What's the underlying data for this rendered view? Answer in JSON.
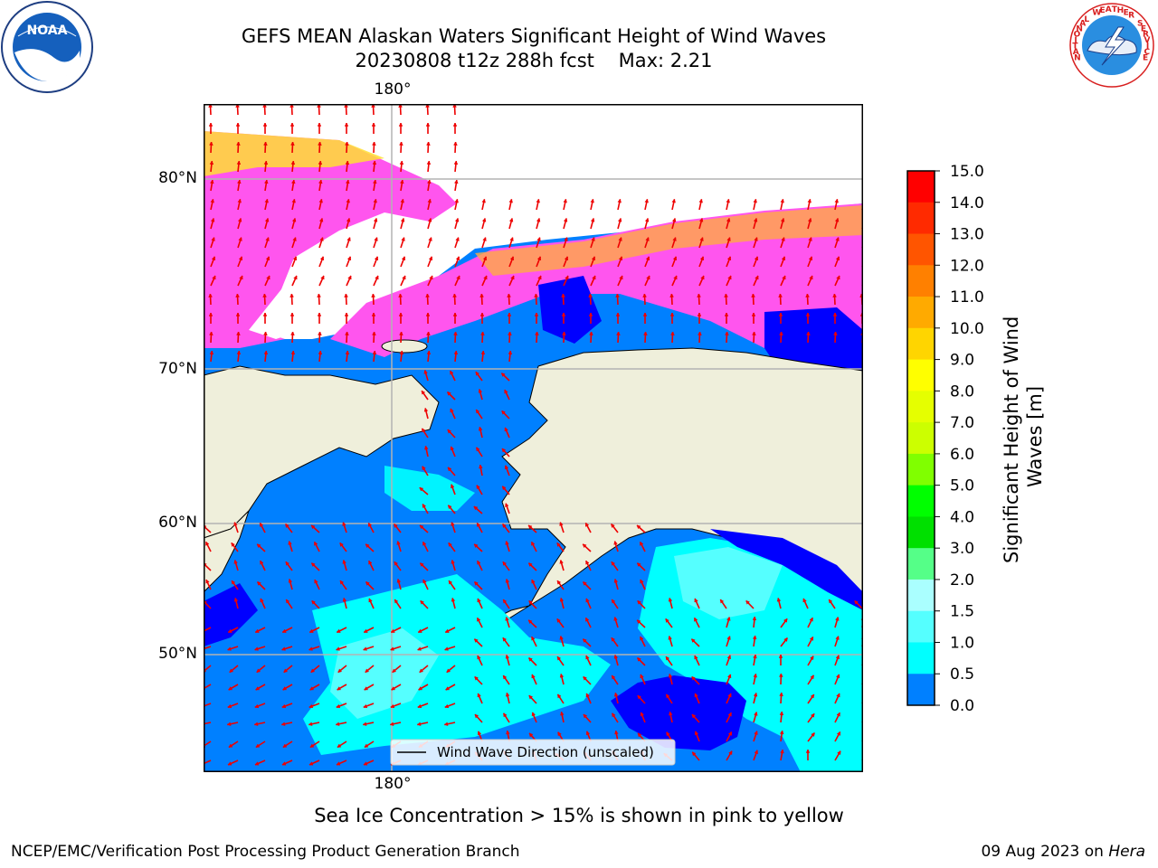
{
  "title": {
    "line1": "GEFS MEAN Alaskan Waters Significant Height of Wind Waves",
    "line2": "20230808 t12z 288h fcst    Max: 2.21"
  },
  "map": {
    "lat_labels": [
      "80°N",
      "70°N",
      "60°N",
      "50°N"
    ],
    "lon_label_top": "180°",
    "lon_label_bottom": "180°",
    "legend_label": "Wind Wave Direction (unscaled)",
    "colors": {
      "ocean_low": "#0000ff",
      "ocean_mid": "#0080ff",
      "ocean_high": "#00ffff",
      "ocean_highest": "#80ffff",
      "land": "#efefdb",
      "ice_pink": "#ff55ee",
      "ice_yellow": "#ffe033",
      "arrow": "#ee0000"
    }
  },
  "colorbar": {
    "label": "Significant Height of Wind Waves [m]",
    "ticks": [
      "15.0",
      "14.0",
      "13.0",
      "12.0",
      "11.0",
      "10.0",
      "9.0",
      "8.0",
      "7.0",
      "6.0",
      "5.0",
      "4.0",
      "3.0",
      "2.0",
      "1.5",
      "1.0",
      "0.5",
      "0.0"
    ],
    "colors": [
      "#ff0000",
      "#ff2a00",
      "#ff5500",
      "#ff8000",
      "#ffaa00",
      "#ffd500",
      "#ffff00",
      "#e5ff00",
      "#ccff00",
      "#80ff00",
      "#00ff00",
      "#00e000",
      "#55ff88",
      "#aaffff",
      "#55ffff",
      "#00ffff",
      "#0080ff",
      "#0000ff"
    ]
  },
  "caption": "Sea Ice Concentration > 15% is shown in pink to yellow",
  "footer": {
    "left": "NCEP/EMC/Verification Post Processing Product Generation Branch",
    "right_prefix": "09 Aug 2023 on ",
    "right_host": "Hera"
  },
  "logos": {
    "noaa_text": "NOAA",
    "nws_text": "NATIONAL WEATHER SERVICE"
  }
}
